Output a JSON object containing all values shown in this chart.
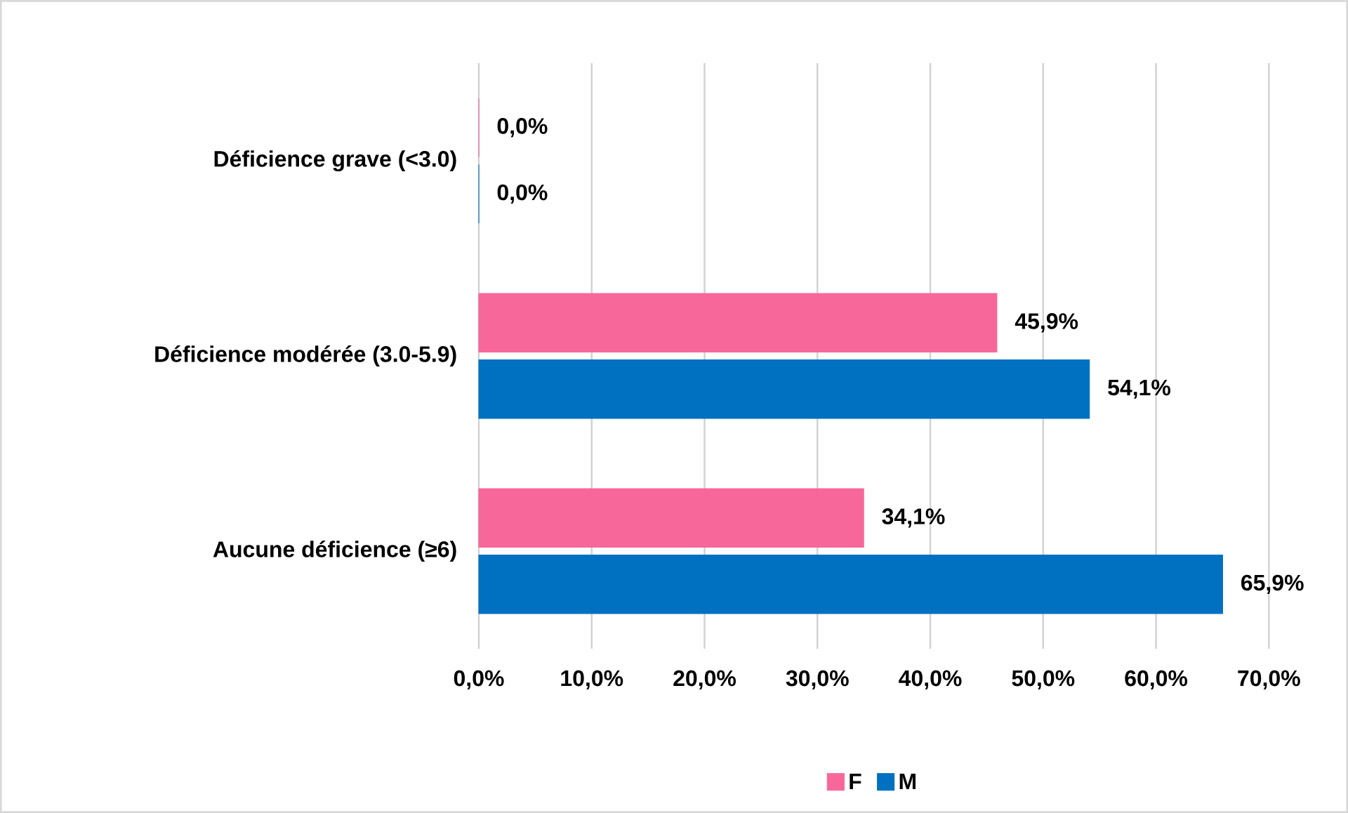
{
  "chart_data": {
    "type": "bar",
    "orientation": "horizontal",
    "categories": [
      "Déficience grave (<3.0)",
      "Déficience modérée (3.0-5.9)",
      "Aucune déficience (≥6)"
    ],
    "series": [
      {
        "name": "F",
        "color": "#f7679a",
        "values": [
          0,
          45.9,
          34.1
        ],
        "value_labels": [
          "0,0%",
          "45,9%",
          "34,1%"
        ]
      },
      {
        "name": "M",
        "color": "#0070c0",
        "values": [
          0,
          54.1,
          65.9
        ],
        "value_labels": [
          "0,0%",
          "54,1%",
          "65,9%"
        ]
      }
    ],
    "xlim": [
      0,
      70
    ],
    "xticks": [
      {
        "value": 0,
        "label": "0,0%"
      },
      {
        "value": 10,
        "label": "10,0%"
      },
      {
        "value": 20,
        "label": "20,0%"
      },
      {
        "value": 30,
        "label": "30,0%"
      },
      {
        "value": 40,
        "label": "40,0%"
      },
      {
        "value": 50,
        "label": "50,0%"
      },
      {
        "value": 60,
        "label": "60,0%"
      },
      {
        "value": 70,
        "label": "70,0%"
      }
    ],
    "grid": "x",
    "legend": "bottom"
  }
}
